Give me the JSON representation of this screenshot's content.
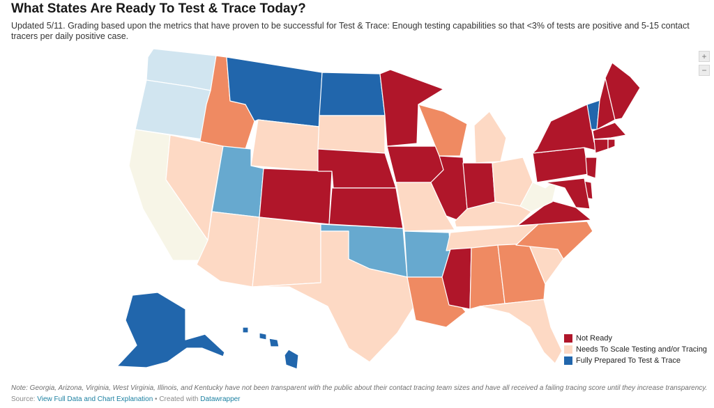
{
  "title": "What States Are Ready To Test & Trace Today?",
  "description": "Updated 5/11. Grading based upon the metrics that have proven to be successful for Test & Trace: Enough testing capabilities so that <3% of tests are positive and 5-15 contact tracers per daily positive case.",
  "zoom": {
    "in_label": "+",
    "out_label": "−"
  },
  "colors": {
    "not_ready": "#b0162a",
    "needs_scale_high": "#ef8a62",
    "needs_scale": "#fdd9c4",
    "neutral": "#f7f5e7",
    "light_blue": "#d1e5f0",
    "mid_blue": "#67a9cf",
    "fully_prepared": "#2166ac"
  },
  "states": {
    "WA": "light_blue",
    "OR": "light_blue",
    "CA": "neutral",
    "ID": "needs_scale_high",
    "NV": "needs_scale",
    "MT": "fully_prepared",
    "WY": "needs_scale",
    "UT": "mid_blue",
    "AZ": "needs_scale",
    "CO": "not_ready",
    "NM": "needs_scale",
    "ND": "fully_prepared",
    "SD": "needs_scale",
    "NE": "not_ready",
    "KS": "not_ready",
    "OK": "mid_blue",
    "TX": "needs_scale",
    "MN": "not_ready",
    "IA": "not_ready",
    "MO": "needs_scale",
    "AR": "mid_blue",
    "LA": "needs_scale_high",
    "WI": "needs_scale_high",
    "IL": "not_ready",
    "MI": "needs_scale",
    "IN": "not_ready",
    "OH": "needs_scale",
    "KY": "needs_scale",
    "TN": "needs_scale",
    "MS": "not_ready",
    "AL": "needs_scale_high",
    "GA": "needs_scale_high",
    "FL": "needs_scale",
    "SC": "needs_scale",
    "NC": "needs_scale_high",
    "VA": "not_ready",
    "WV": "neutral",
    "PA": "not_ready",
    "NY": "not_ready",
    "VT": "fully_prepared",
    "NH": "not_ready",
    "ME": "not_ready",
    "MA": "not_ready",
    "CT": "not_ready",
    "RI": "not_ready",
    "NJ": "not_ready",
    "DE": "not_ready",
    "MD": "not_ready",
    "AK": "fully_prepared",
    "HI": "fully_prepared"
  },
  "legend": [
    {
      "label": "Not Ready",
      "color": "#b0162a"
    },
    {
      "label": "Needs To Scale Testing and/or Tracing",
      "color": "#fdd9c4"
    },
    {
      "label": "Fully Prepared To Test & Trace",
      "color": "#2166ac"
    }
  ],
  "note": "Note: Georgia, Arizona, Virginia, West Virginia, Illinois, and Kentucky have not been transparent with the public about their contact tracing team sizes and have all received a failing tracing score until they increase transparency.",
  "source": {
    "prefix": "Source: ",
    "link_label": "View Full Data and Chart Explanation",
    "separator": " • Created with ",
    "tool_label": "Datawrapper"
  }
}
